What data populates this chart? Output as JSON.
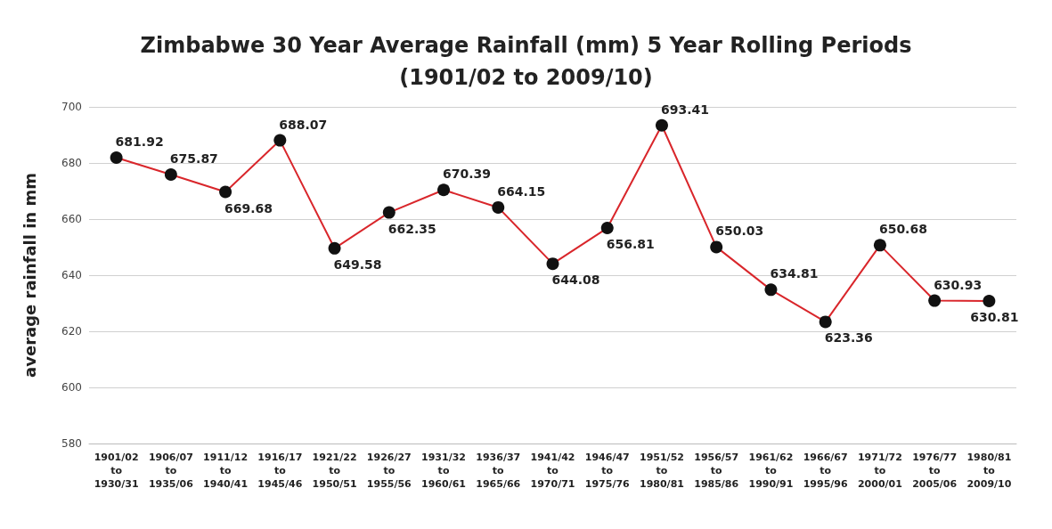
{
  "chart_data": {
    "type": "line",
    "title": "Zimbabwe 30 Year Average Rainfall (mm) 5 Year Rolling Periods\n(1901/02 to 2009/10)",
    "ylabel": "average rainfall in mm",
    "categories": [
      "1901/02\nto\n1930/31",
      "1906/07\nto\n1935/06",
      "1911/12\nto\n1940/41",
      "1916/17\nto\n1945/46",
      "1921/22\nto\n1950/51",
      "1926/27\nto\n1955/56",
      "1931/32\nto\n1960/61",
      "1936/37\nto\n1965/66",
      "1941/42\nto\n1970/71",
      "1946/47\nto\n1975/76",
      "1951/52\nto\n1980/81",
      "1956/57\nto\n1985/86",
      "1961/62\nto\n1990/91",
      "1966/67\nto\n1995/96",
      "1971/72\nto\n2000/01",
      "1976/77\nto\n2005/06",
      "1980/81\nto\n2009/10"
    ],
    "series": [
      {
        "color": "#d9262b",
        "values": [
          681.92,
          675.87,
          669.68,
          688.07,
          649.58,
          662.35,
          670.39,
          664.15,
          644.08,
          656.81,
          693.41,
          650.03,
          634.81,
          623.36,
          650.68,
          630.93,
          630.81
        ]
      }
    ],
    "ylim": [
      580,
      700
    ],
    "yticks": [
      580,
      600,
      620,
      640,
      660,
      680,
      700
    ],
    "grid": "y",
    "marker": "circle",
    "line_style": "solid",
    "data_labels": true
  }
}
